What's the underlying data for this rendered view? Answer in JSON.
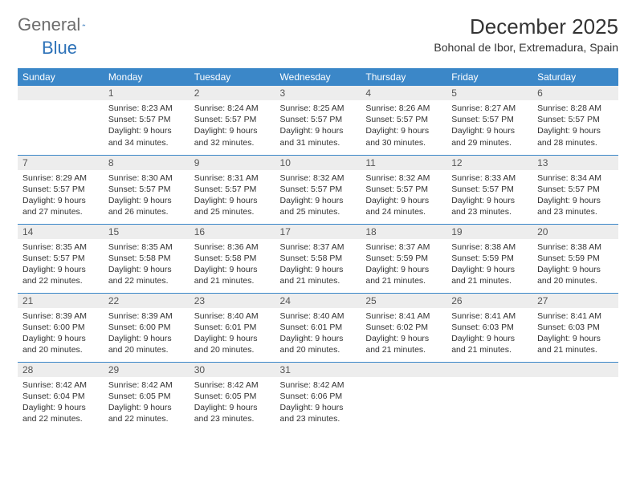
{
  "brand": {
    "word1": "General",
    "word2": "Blue"
  },
  "title": "December 2025",
  "location": "Bohonal de Ibor, Extremadura, Spain",
  "colors": {
    "header_bg": "#3b87c8",
    "header_text": "#ffffff",
    "daynum_bg": "#ededed",
    "row_border": "#3b87c8",
    "body_text": "#333333",
    "logo_gray": "#6d6d6d",
    "logo_blue": "#2d72b8"
  },
  "weekdays": [
    "Sunday",
    "Monday",
    "Tuesday",
    "Wednesday",
    "Thursday",
    "Friday",
    "Saturday"
  ],
  "weeks": [
    [
      {
        "n": "",
        "lines": []
      },
      {
        "n": "1",
        "lines": [
          "Sunrise: 8:23 AM",
          "Sunset: 5:57 PM",
          "Daylight: 9 hours and 34 minutes."
        ]
      },
      {
        "n": "2",
        "lines": [
          "Sunrise: 8:24 AM",
          "Sunset: 5:57 PM",
          "Daylight: 9 hours and 32 minutes."
        ]
      },
      {
        "n": "3",
        "lines": [
          "Sunrise: 8:25 AM",
          "Sunset: 5:57 PM",
          "Daylight: 9 hours and 31 minutes."
        ]
      },
      {
        "n": "4",
        "lines": [
          "Sunrise: 8:26 AM",
          "Sunset: 5:57 PM",
          "Daylight: 9 hours and 30 minutes."
        ]
      },
      {
        "n": "5",
        "lines": [
          "Sunrise: 8:27 AM",
          "Sunset: 5:57 PM",
          "Daylight: 9 hours and 29 minutes."
        ]
      },
      {
        "n": "6",
        "lines": [
          "Sunrise: 8:28 AM",
          "Sunset: 5:57 PM",
          "Daylight: 9 hours and 28 minutes."
        ]
      }
    ],
    [
      {
        "n": "7",
        "lines": [
          "Sunrise: 8:29 AM",
          "Sunset: 5:57 PM",
          "Daylight: 9 hours and 27 minutes."
        ]
      },
      {
        "n": "8",
        "lines": [
          "Sunrise: 8:30 AM",
          "Sunset: 5:57 PM",
          "Daylight: 9 hours and 26 minutes."
        ]
      },
      {
        "n": "9",
        "lines": [
          "Sunrise: 8:31 AM",
          "Sunset: 5:57 PM",
          "Daylight: 9 hours and 25 minutes."
        ]
      },
      {
        "n": "10",
        "lines": [
          "Sunrise: 8:32 AM",
          "Sunset: 5:57 PM",
          "Daylight: 9 hours and 25 minutes."
        ]
      },
      {
        "n": "11",
        "lines": [
          "Sunrise: 8:32 AM",
          "Sunset: 5:57 PM",
          "Daylight: 9 hours and 24 minutes."
        ]
      },
      {
        "n": "12",
        "lines": [
          "Sunrise: 8:33 AM",
          "Sunset: 5:57 PM",
          "Daylight: 9 hours and 23 minutes."
        ]
      },
      {
        "n": "13",
        "lines": [
          "Sunrise: 8:34 AM",
          "Sunset: 5:57 PM",
          "Daylight: 9 hours and 23 minutes."
        ]
      }
    ],
    [
      {
        "n": "14",
        "lines": [
          "Sunrise: 8:35 AM",
          "Sunset: 5:57 PM",
          "Daylight: 9 hours and 22 minutes."
        ]
      },
      {
        "n": "15",
        "lines": [
          "Sunrise: 8:35 AM",
          "Sunset: 5:58 PM",
          "Daylight: 9 hours and 22 minutes."
        ]
      },
      {
        "n": "16",
        "lines": [
          "Sunrise: 8:36 AM",
          "Sunset: 5:58 PM",
          "Daylight: 9 hours and 21 minutes."
        ]
      },
      {
        "n": "17",
        "lines": [
          "Sunrise: 8:37 AM",
          "Sunset: 5:58 PM",
          "Daylight: 9 hours and 21 minutes."
        ]
      },
      {
        "n": "18",
        "lines": [
          "Sunrise: 8:37 AM",
          "Sunset: 5:59 PM",
          "Daylight: 9 hours and 21 minutes."
        ]
      },
      {
        "n": "19",
        "lines": [
          "Sunrise: 8:38 AM",
          "Sunset: 5:59 PM",
          "Daylight: 9 hours and 21 minutes."
        ]
      },
      {
        "n": "20",
        "lines": [
          "Sunrise: 8:38 AM",
          "Sunset: 5:59 PM",
          "Daylight: 9 hours and 20 minutes."
        ]
      }
    ],
    [
      {
        "n": "21",
        "lines": [
          "Sunrise: 8:39 AM",
          "Sunset: 6:00 PM",
          "Daylight: 9 hours and 20 minutes."
        ]
      },
      {
        "n": "22",
        "lines": [
          "Sunrise: 8:39 AM",
          "Sunset: 6:00 PM",
          "Daylight: 9 hours and 20 minutes."
        ]
      },
      {
        "n": "23",
        "lines": [
          "Sunrise: 8:40 AM",
          "Sunset: 6:01 PM",
          "Daylight: 9 hours and 20 minutes."
        ]
      },
      {
        "n": "24",
        "lines": [
          "Sunrise: 8:40 AM",
          "Sunset: 6:01 PM",
          "Daylight: 9 hours and 20 minutes."
        ]
      },
      {
        "n": "25",
        "lines": [
          "Sunrise: 8:41 AM",
          "Sunset: 6:02 PM",
          "Daylight: 9 hours and 21 minutes."
        ]
      },
      {
        "n": "26",
        "lines": [
          "Sunrise: 8:41 AM",
          "Sunset: 6:03 PM",
          "Daylight: 9 hours and 21 minutes."
        ]
      },
      {
        "n": "27",
        "lines": [
          "Sunrise: 8:41 AM",
          "Sunset: 6:03 PM",
          "Daylight: 9 hours and 21 minutes."
        ]
      }
    ],
    [
      {
        "n": "28",
        "lines": [
          "Sunrise: 8:42 AM",
          "Sunset: 6:04 PM",
          "Daylight: 9 hours and 22 minutes."
        ]
      },
      {
        "n": "29",
        "lines": [
          "Sunrise: 8:42 AM",
          "Sunset: 6:05 PM",
          "Daylight: 9 hours and 22 minutes."
        ]
      },
      {
        "n": "30",
        "lines": [
          "Sunrise: 8:42 AM",
          "Sunset: 6:05 PM",
          "Daylight: 9 hours and 23 minutes."
        ]
      },
      {
        "n": "31",
        "lines": [
          "Sunrise: 8:42 AM",
          "Sunset: 6:06 PM",
          "Daylight: 9 hours and 23 minutes."
        ]
      },
      {
        "n": "",
        "lines": []
      },
      {
        "n": "",
        "lines": []
      },
      {
        "n": "",
        "lines": []
      }
    ]
  ]
}
